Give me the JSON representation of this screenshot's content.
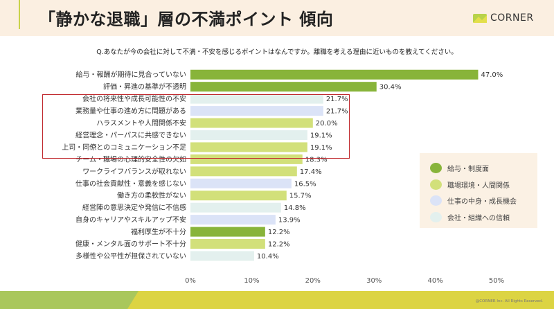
{
  "header": {
    "title": "「静かな退職」層の不満ポイント 傾向",
    "logo_text": "CORNER"
  },
  "question": "Q.あなたが今の会社に対して不満・不安を感じるポイントはなんですか。離職を考える理由に近いものを教えてください。",
  "colors": {
    "salary": "#88b43a",
    "environment": "#d2e07a",
    "work": "#dbe3f7",
    "trust": "#e3f0ee",
    "highlight": "#c0282d"
  },
  "legend": [
    {
      "label": "給与・制度面",
      "group": "salary"
    },
    {
      "label": "職場環境・人間関係",
      "group": "environment"
    },
    {
      "label": "仕事の中身・成長機会",
      "group": "work"
    },
    {
      "label": "会社・組織への信頼",
      "group": "trust"
    }
  ],
  "chart_data": {
    "type": "bar",
    "orientation": "horizontal",
    "categories": [
      "給与・報酬が期待に見合っていない",
      "評価・昇進の基準が不透明",
      "会社の将来性や成長可能性の不安",
      "業務量や仕事の進め方に問題がある",
      "ハラスメントや人間関係不安",
      "経営理念・パーパスに共感できない",
      "上司・同僚とのコミュニケーション不足",
      "チーム・職場の心理的安全性の欠如",
      "ワークライフバランスが取れない",
      "仕事の社会貢献性・意義を感じない",
      "働き方の柔軟性がない",
      "経営陣の意思決定や発信に不信感",
      "自身のキャリアやスキルアップ不安",
      "福利厚生が不十分",
      "健康・メンタル面のサポート不十分",
      "多様性や公平性が担保されていない"
    ],
    "values": [
      47.0,
      30.4,
      21.7,
      21.7,
      20.0,
      19.1,
      19.1,
      18.3,
      17.4,
      16.5,
      15.7,
      14.8,
      13.9,
      12.2,
      12.2,
      10.4
    ],
    "groups": [
      "salary",
      "salary",
      "trust",
      "work",
      "environment",
      "trust",
      "environment",
      "environment",
      "environment",
      "work",
      "environment",
      "trust",
      "work",
      "salary",
      "environment",
      "trust"
    ],
    "value_labels": [
      "47.0%",
      "30.4%",
      "21.7%",
      "21.7%",
      "20.0%",
      "19.1%",
      "19.1%",
      "18.3%",
      "17.4%",
      "16.5%",
      "15.7%",
      "14.8%",
      "13.9%",
      "12.2%",
      "12.2%",
      "10.4%"
    ],
    "xticks": [
      "0%",
      "10%",
      "20%",
      "30%",
      "40%",
      "50%"
    ],
    "xlim": [
      0,
      50
    ],
    "highlighted_range": [
      2,
      6
    ],
    "legend_position": "right"
  },
  "footer": {
    "copyright": "@CORNER Inc. All Rights Reserved."
  }
}
